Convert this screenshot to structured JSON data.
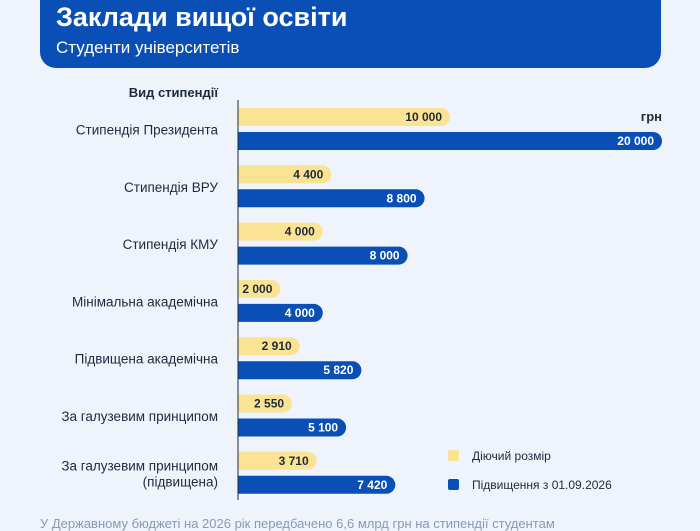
{
  "header": {
    "title": "Заклади вищої освіти",
    "subtitle": "Студенти університетів"
  },
  "colors": {
    "current": "#fbe394",
    "increase": "#0a4fb5",
    "header_bg": "#0a4fb5",
    "axis": "#1f2a3c"
  },
  "footer": {
    "text": "У Державному бюджеті на 2026 рік передбачено 6,6 млрд грн на стипендії студентам"
  },
  "chart_data": {
    "type": "bar",
    "orientation": "horizontal",
    "category_axis_title": "Вид стипендії",
    "unit": "грн",
    "categories": [
      [
        "Стипендія Президента"
      ],
      [
        "Стипендія ВРУ"
      ],
      [
        "Стипендія КМУ"
      ],
      [
        "Мінімальна академічна"
      ],
      [
        "Підвищена академічна"
      ],
      [
        "За галузевим принципом"
      ],
      [
        "За галузевим принципом",
        "(підвищена)"
      ]
    ],
    "series": [
      {
        "name": "Діючий розмір",
        "values": [
          10000,
          4400,
          4000,
          2000,
          2910,
          2550,
          3710
        ],
        "labels": [
          "10 000",
          "4 400",
          "4 000",
          "2 000",
          "2 910",
          "2 550",
          "3 710"
        ]
      },
      {
        "name": "Підвищення з 01.09.2026",
        "values": [
          20000,
          8800,
          8000,
          4000,
          5820,
          5100,
          7420
        ],
        "labels": [
          "20 000",
          "8 800",
          "8 000",
          "4 000",
          "5 820",
          "5 100",
          "7 420"
        ]
      }
    ],
    "xlim": [
      0,
      20000
    ],
    "grid": false,
    "legend_position": "bottom-right"
  }
}
